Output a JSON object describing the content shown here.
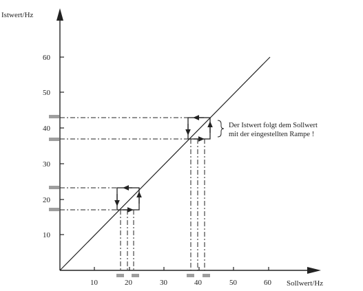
{
  "diagram": {
    "y_axis_title": "Istwert/Hz",
    "x_axis_title": "Sollwert/Hz",
    "x_ticks": [
      "10",
      "20",
      "30",
      "40",
      "50",
      "60"
    ],
    "y_ticks": [
      "10",
      "20",
      "30",
      "40",
      "50",
      "60"
    ],
    "annotation": {
      "line1": "Der Istwert folgt dem Sollwert",
      "line2": "mit der eingestellten Rampe !"
    },
    "colors": {
      "ink": "#222222",
      "hysteresis_marker": "#9e9e9e"
    }
  },
  "chart_data": {
    "type": "line",
    "title": "",
    "xlabel": "Sollwert/Hz",
    "ylabel": "Istwert/Hz",
    "xlim": [
      0,
      60
    ],
    "ylim": [
      0,
      60
    ],
    "grid": false,
    "series": [
      {
        "x": [
          0,
          60
        ],
        "y": [
          0,
          60
        ]
      }
    ],
    "hysteresis_loops": [
      {
        "x_range": [
          16.5,
          23
        ],
        "y_range": [
          17,
          23
        ],
        "center": 20
      },
      {
        "x_range": [
          37,
          43.5
        ],
        "y_range": [
          37,
          43
        ],
        "center": 40
      }
    ]
  }
}
